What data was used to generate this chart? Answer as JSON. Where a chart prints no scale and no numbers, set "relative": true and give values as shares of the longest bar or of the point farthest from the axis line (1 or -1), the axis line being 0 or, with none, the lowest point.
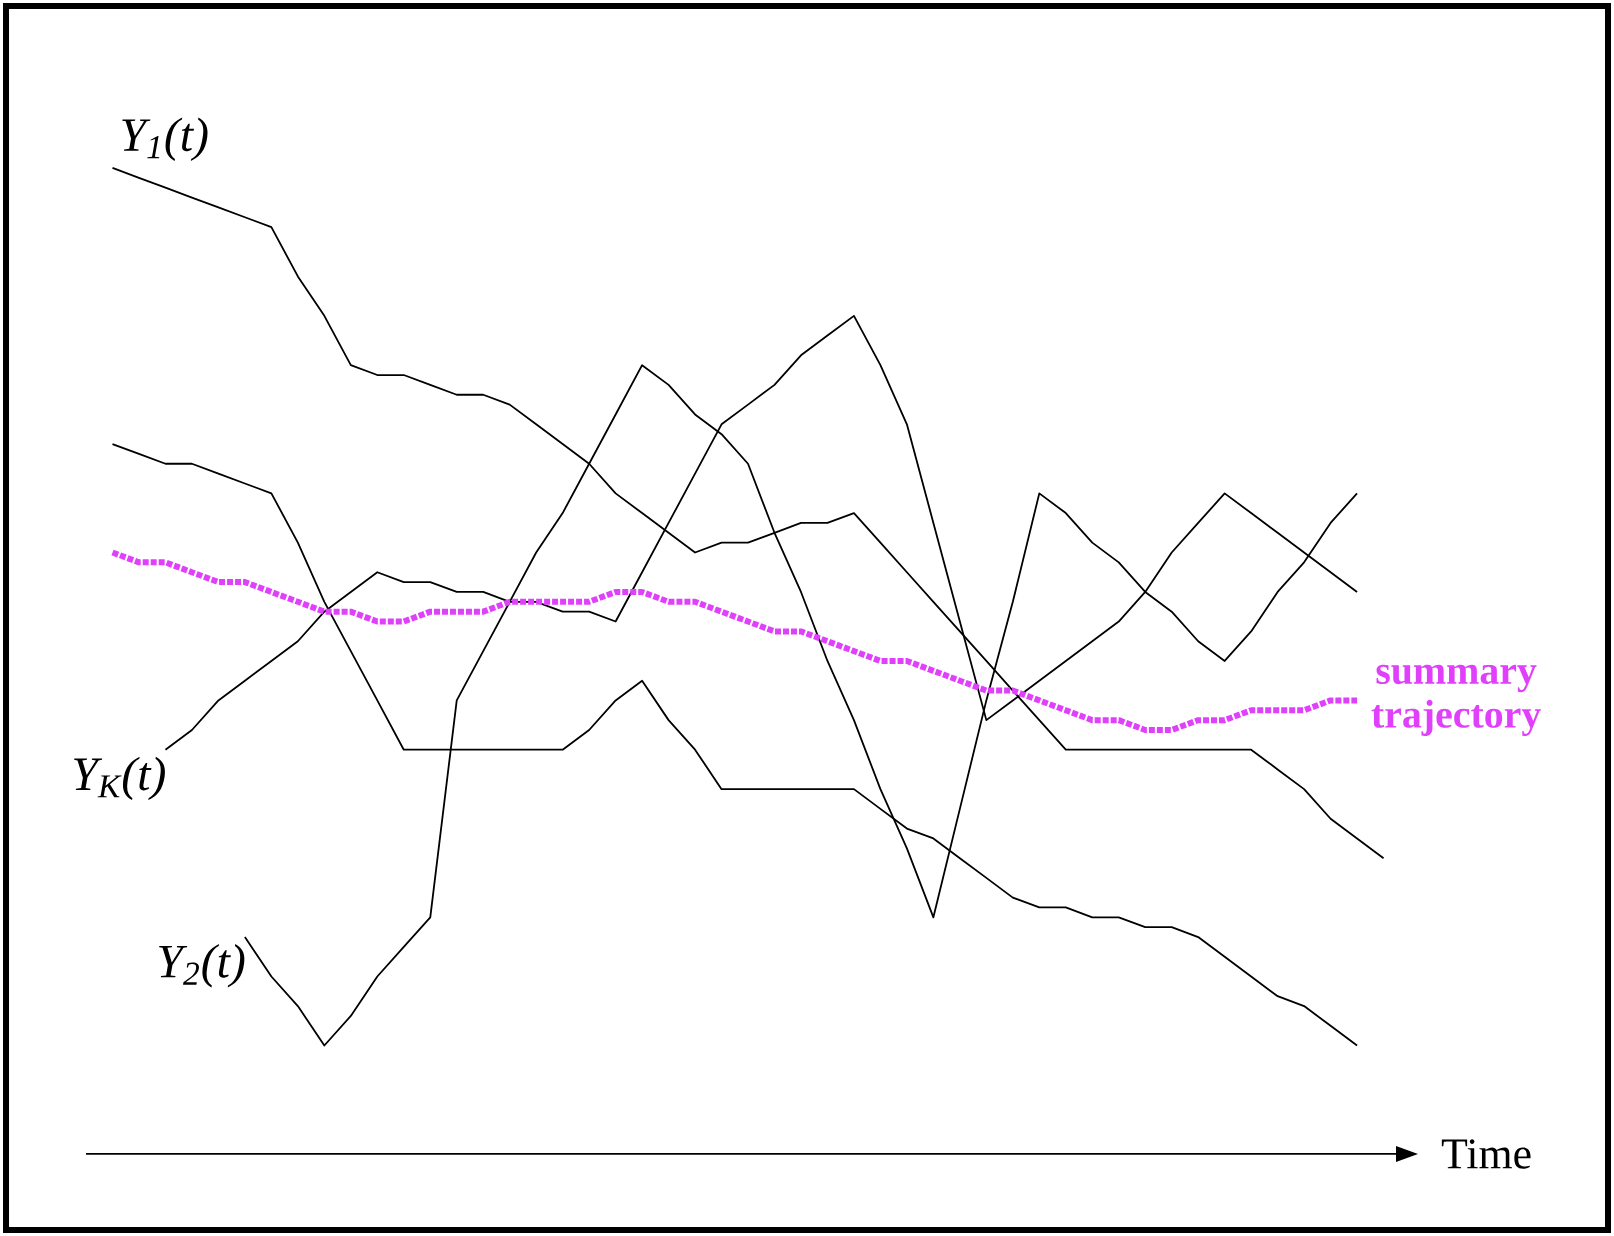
{
  "chart_data": {
    "type": "line",
    "relative": true,
    "xlabel": "Time",
    "marker": "none",
    "categories": [
      null,
      null,
      null,
      null,
      null,
      null,
      null,
      null,
      null,
      null,
      null,
      null,
      null,
      null,
      null,
      null,
      null,
      null,
      null,
      null,
      null,
      null,
      null,
      null,
      null,
      null,
      null,
      null,
      null,
      null,
      null,
      null,
      null,
      null,
      null,
      null,
      null,
      null,
      null,
      null,
      null,
      null,
      null,
      null,
      null,
      null,
      null,
      null,
      null,
      null,
      null
    ],
    "series": [
      {
        "name": "Y$_{1}$(t)",
        "color": "#000000",
        "line_style": "solid",
        "values": [
          null,
          1.0,
          0.99,
          0.98,
          0.97,
          0.96,
          0.95,
          0.94,
          0.89,
          0.85,
          0.8,
          0.79,
          0.79,
          0.78,
          0.77,
          0.77,
          0.76,
          0.74,
          0.72,
          0.7,
          0.67,
          0.65,
          0.63,
          0.61,
          0.62,
          0.62,
          0.63,
          0.64,
          0.64,
          0.65,
          0.62,
          0.59,
          0.56,
          0.53,
          0.5,
          0.47,
          0.44,
          0.41,
          0.41,
          0.41,
          0.41,
          0.41,
          0.41,
          0.41,
          0.41,
          0.39,
          0.37,
          0.34,
          0.32,
          0.3,
          null
        ]
      },
      {
        "color": "#000000",
        "line_style": "solid",
        "values": [
          null,
          0.72,
          0.71,
          0.7,
          0.7,
          0.69,
          0.68,
          0.67,
          0.62,
          0.56,
          0.51,
          0.46,
          0.41,
          0.41,
          0.41,
          0.41,
          0.41,
          0.41,
          0.41,
          0.43,
          0.46,
          0.48,
          0.44,
          0.41,
          0.37,
          0.37,
          0.37,
          0.37,
          0.37,
          0.37,
          0.35,
          0.33,
          0.32,
          0.3,
          0.28,
          0.26,
          0.25,
          0.25,
          0.24,
          0.24,
          0.23,
          0.23,
          0.22,
          0.2,
          0.18,
          0.16,
          0.15,
          0.13,
          0.11,
          null,
          null
        ]
      },
      {
        "name": "Y$_{2}$(t)",
        "color": "#000000",
        "line_style": "solid",
        "values": [
          null,
          null,
          null,
          null,
          null,
          null,
          0.22,
          0.18,
          0.15,
          0.11,
          0.14,
          0.18,
          0.21,
          0.24,
          0.46,
          0.51,
          0.56,
          0.61,
          0.65,
          0.7,
          0.75,
          0.8,
          0.78,
          0.75,
          0.73,
          0.7,
          0.63,
          0.57,
          0.5,
          0.44,
          0.37,
          0.31,
          0.24,
          0.35,
          0.46,
          0.56,
          0.67,
          0.65,
          0.62,
          0.6,
          0.57,
          0.55,
          0.52,
          0.5,
          0.53,
          0.57,
          0.6,
          0.64,
          0.67,
          null,
          null
        ]
      },
      {
        "name": "Y$_{K}$(t)",
        "color": "#000000",
        "line_style": "solid",
        "values": [
          null,
          null,
          null,
          0.41,
          0.43,
          0.46,
          0.48,
          0.5,
          0.52,
          0.55,
          0.57,
          0.59,
          0.58,
          0.58,
          0.57,
          0.57,
          0.56,
          0.56,
          0.55,
          0.55,
          0.54,
          0.59,
          0.64,
          0.69,
          0.74,
          0.76,
          0.78,
          0.81,
          0.83,
          0.85,
          0.8,
          0.74,
          0.64,
          0.54,
          0.44,
          0.46,
          0.48,
          0.5,
          0.52,
          0.54,
          0.57,
          0.61,
          0.64,
          0.67,
          0.65,
          0.63,
          0.61,
          0.59,
          0.57,
          null,
          null
        ]
      },
      {
        "name": "summary trajectory",
        "color": "#e040fb",
        "line_style": "dotted",
        "values": [
          null,
          0.61,
          0.6,
          0.6,
          0.59,
          0.58,
          0.58,
          0.57,
          0.56,
          0.55,
          0.55,
          0.54,
          0.54,
          0.55,
          0.55,
          0.55,
          0.56,
          0.56,
          0.56,
          0.56,
          0.57,
          0.57,
          0.56,
          0.56,
          0.55,
          0.54,
          0.53,
          0.53,
          0.52,
          0.51,
          0.5,
          0.5,
          0.49,
          0.48,
          0.47,
          0.47,
          0.46,
          0.45,
          0.44,
          0.44,
          0.43,
          0.43,
          0.44,
          0.44,
          0.45,
          0.45,
          0.45,
          0.46,
          0.46,
          null,
          null
        ]
      }
    ]
  }
}
